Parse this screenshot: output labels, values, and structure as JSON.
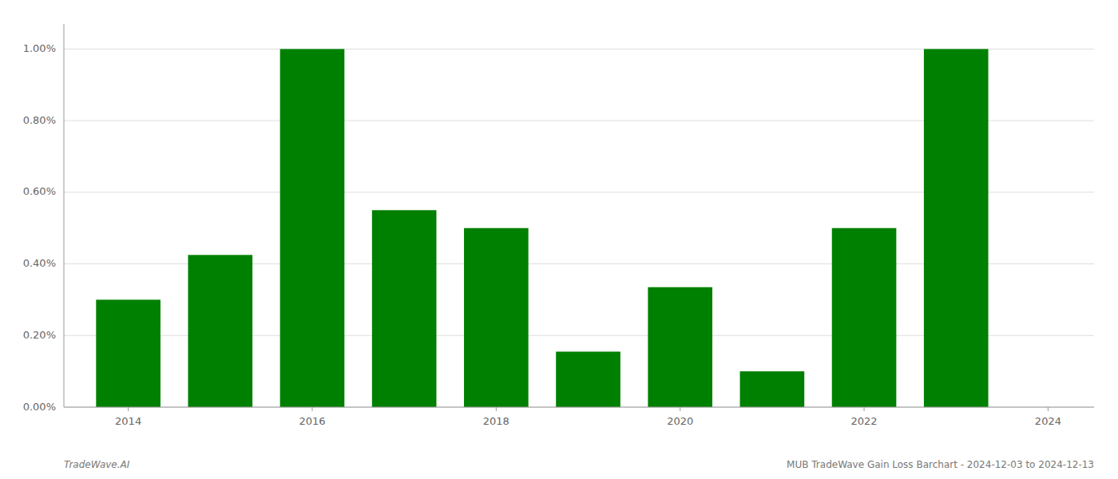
{
  "chart_data": {
    "type": "bar",
    "x": [
      2014,
      2015,
      2016,
      2017,
      2018,
      2019,
      2020,
      2021,
      2022,
      2023
    ],
    "values": [
      0.003,
      0.00425,
      0.01,
      0.0055,
      0.005,
      0.00155,
      0.00335,
      0.001,
      0.005,
      0.01
    ],
    "color": "#008000",
    "xlim": [
      2013.3,
      2024.5
    ],
    "xticks": [
      2014,
      2016,
      2018,
      2020,
      2022,
      2024
    ],
    "ylim": [
      0,
      0.0107
    ],
    "yticks": [
      {
        "value": 0.0,
        "label": "0.00%"
      },
      {
        "value": 0.002,
        "label": "0.20%"
      },
      {
        "value": 0.004,
        "label": "0.40%"
      },
      {
        "value": 0.006,
        "label": "0.60%"
      },
      {
        "value": 0.008,
        "label": "0.80%"
      },
      {
        "value": 0.01,
        "label": "1.00%"
      }
    ],
    "grid": true,
    "annotations": [
      "TradeWave.AI",
      "MUB TradeWave Gain Loss Barchart - 2024-12-03 to 2024-12-13"
    ]
  }
}
